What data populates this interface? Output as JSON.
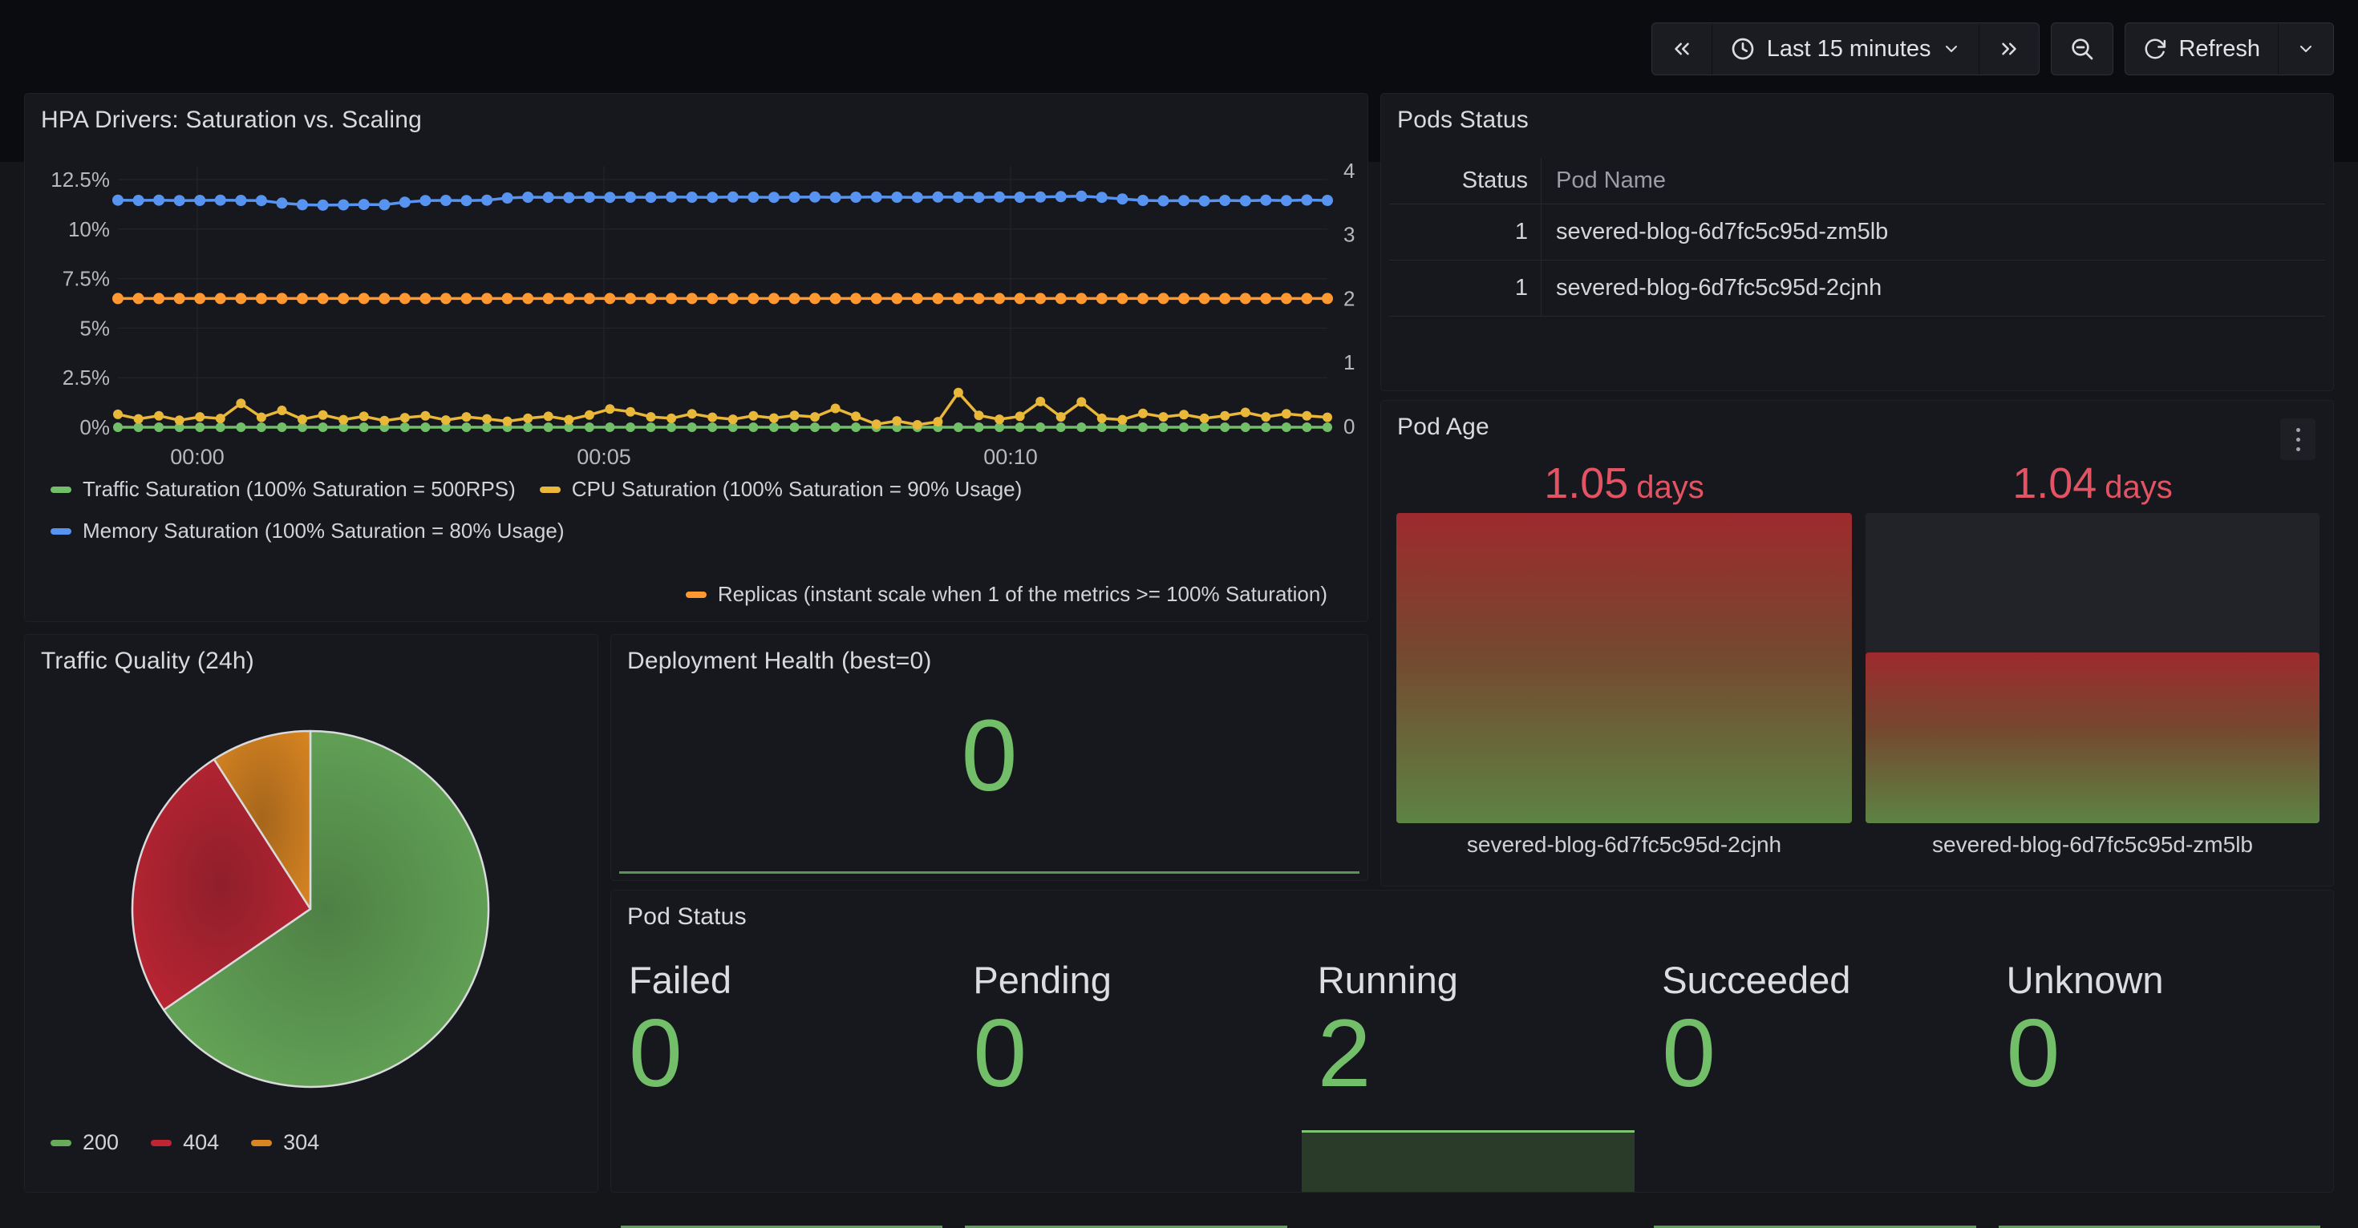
{
  "toolbar": {
    "time_range_label": "Last 15 minutes",
    "refresh_label": "Refresh"
  },
  "pods_status": {
    "title": "Pods Status",
    "headers": [
      "Status",
      "Pod Name"
    ],
    "rows": [
      [
        "1",
        "severed-blog-6d7fc5c95d-zm5lb"
      ],
      [
        "1",
        "severed-blog-6d7fc5c95d-2cjnh"
      ]
    ]
  },
  "colors": {
    "green": "#73BF69",
    "yellow": "#EAB839",
    "blue": "#5794F2",
    "orange": "#FF9830",
    "value_red": "#e45363",
    "panel_bg": "#17181d",
    "page_bg": "#15161a",
    "header_bg": "#0b0c0f"
  },
  "chart_data": [
    {
      "type": "line",
      "title": "HPA Drivers: Saturation vs. Scaling",
      "x_tick_labels": [
        "00:00",
        "00:05",
        "00:10"
      ],
      "y_left_tick_labels": [
        "12.5%",
        "10%",
        "7.5%",
        "5%",
        "2.5%",
        "0%"
      ],
      "y_left_tick_values": [
        12.5,
        10,
        7.5,
        5,
        2.5,
        0
      ],
      "y_right_tick_labels": [
        "4",
        "3",
        "2",
        "1",
        "0"
      ],
      "y_right_tick_values": [
        4,
        3,
        2,
        1,
        0
      ],
      "ylim_left": [
        0,
        13.2
      ],
      "ylim_right": [
        0,
        4.2
      ],
      "grid": true,
      "legend_position": "bottom",
      "series": [
        {
          "name": "Traffic Saturation (100% Saturation = 500RPS)",
          "color": "#73BF69",
          "axis": "left",
          "values": [
            0,
            0,
            0,
            0,
            0,
            0,
            0,
            0,
            0,
            0,
            0,
            0,
            0,
            0,
            0,
            0,
            0,
            0,
            0,
            0,
            0,
            0,
            0,
            0,
            0,
            0,
            0,
            0,
            0,
            0,
            0,
            0,
            0,
            0,
            0,
            0,
            0,
            0,
            0,
            0,
            0,
            0,
            0,
            0,
            0,
            0,
            0,
            0,
            0,
            0,
            0,
            0,
            0,
            0,
            0,
            0,
            0,
            0,
            0,
            0
          ]
        },
        {
          "name": "CPU Saturation (100% Saturation = 90% Usage)",
          "color": "#EAB839",
          "axis": "left",
          "values": [
            0.65,
            0.42,
            0.58,
            0.35,
            0.52,
            0.44,
            1.2,
            0.5,
            0.85,
            0.4,
            0.62,
            0.38,
            0.55,
            0.33,
            0.48,
            0.58,
            0.36,
            0.52,
            0.42,
            0.3,
            0.45,
            0.55,
            0.38,
            0.62,
            0.92,
            0.78,
            0.52,
            0.45,
            0.68,
            0.5,
            0.4,
            0.58,
            0.46,
            0.6,
            0.52,
            0.95,
            0.55,
            0.15,
            0.32,
            0.12,
            0.28,
            1.75,
            0.6,
            0.4,
            0.55,
            1.3,
            0.52,
            1.28,
            0.45,
            0.38,
            0.7,
            0.52,
            0.64,
            0.45,
            0.58,
            0.75,
            0.52,
            0.68,
            0.58,
            0.5
          ]
        },
        {
          "name": "Memory Saturation (100% Saturation = 80% Usage)",
          "color": "#5794F2",
          "axis": "left",
          "values": [
            11.46,
            11.45,
            11.46,
            11.44,
            11.45,
            11.46,
            11.45,
            11.44,
            11.31,
            11.23,
            11.21,
            11.22,
            11.24,
            11.23,
            11.36,
            11.44,
            11.45,
            11.44,
            11.46,
            11.57,
            11.61,
            11.6,
            11.59,
            11.61,
            11.6,
            11.61,
            11.6,
            11.62,
            11.61,
            11.6,
            11.62,
            11.61,
            11.6,
            11.61,
            11.62,
            11.6,
            11.61,
            11.62,
            11.61,
            11.6,
            11.62,
            11.61,
            11.6,
            11.62,
            11.61,
            11.62,
            11.64,
            11.66,
            11.6,
            11.52,
            11.45,
            11.43,
            11.44,
            11.42,
            11.45,
            11.43,
            11.46,
            11.44,
            11.47,
            11.45
          ]
        },
        {
          "name": "Replicas (instant scale when 1 of the metrics >= 100% Saturation)",
          "color": "#FF9830",
          "axis": "right",
          "values": [
            2,
            2,
            2,
            2,
            2,
            2,
            2,
            2,
            2,
            2,
            2,
            2,
            2,
            2,
            2,
            2,
            2,
            2,
            2,
            2,
            2,
            2,
            2,
            2,
            2,
            2,
            2,
            2,
            2,
            2,
            2,
            2,
            2,
            2,
            2,
            2,
            2,
            2,
            2,
            2,
            2,
            2,
            2,
            2,
            2,
            2,
            2,
            2,
            2,
            2,
            2,
            2,
            2,
            2,
            2,
            2,
            2,
            2,
            2,
            2
          ]
        }
      ]
    },
    {
      "type": "pie",
      "title": "Traffic Quality (24h)",
      "labels": [
        "200",
        "404",
        "304"
      ],
      "values": [
        65.4,
        25.5,
        9.1
      ],
      "slice_colors": [
        [
          "#4e8045",
          "#68ab5b"
        ],
        [
          "#8f1f2b",
          "#c02534"
        ],
        [
          "#a5661c",
          "#d98521"
        ]
      ],
      "legend_position": "bottom"
    },
    {
      "type": "stat",
      "title": "Deployment Health (best=0)",
      "value": 0
    },
    {
      "type": "stat",
      "title": "Pod Status",
      "categories": [
        "Failed",
        "Pending",
        "Running",
        "Succeeded",
        "Unknown"
      ],
      "values": [
        0,
        0,
        2,
        0,
        0
      ]
    },
    {
      "type": "bar-gauge",
      "title": "Pod Age",
      "categories": [
        "severed-blog-6d7fc5c95d-2cjnh",
        "severed-blog-6d7fc5c95d-zm5lb"
      ],
      "values": [
        1.05,
        1.04
      ],
      "unit": "days",
      "fill_pct": [
        100,
        55
      ],
      "gradient": [
        "#9e2a2e",
        "#75482f",
        "#5d8344"
      ],
      "value_color": "#e45363"
    }
  ]
}
